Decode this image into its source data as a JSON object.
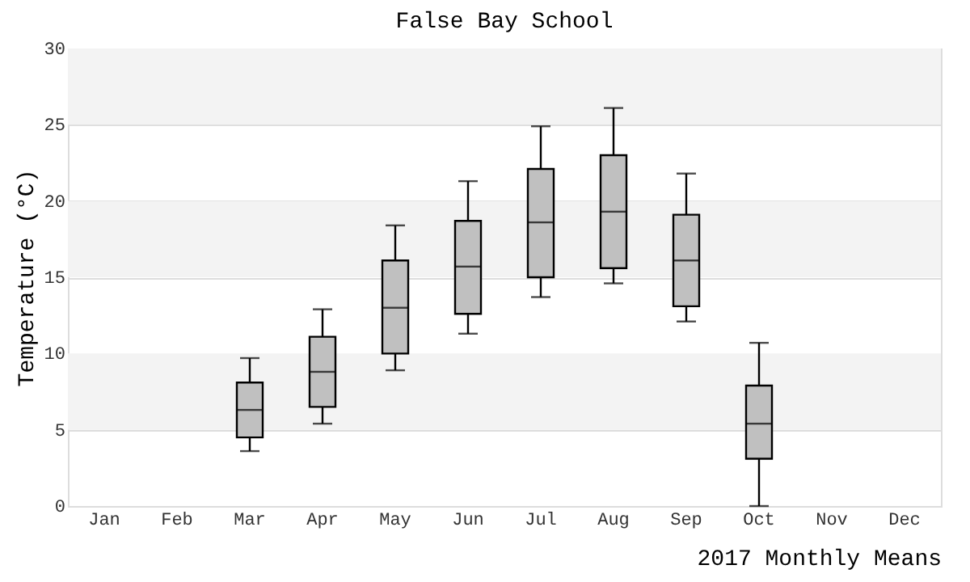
{
  "chart_data": {
    "type": "box",
    "title": "False Bay School",
    "xlabel": "2017 Monthly Means",
    "ylabel": "Temperature (°C)",
    "categories": [
      "Jan",
      "Feb",
      "Mar",
      "Apr",
      "May",
      "Jun",
      "Jul",
      "Aug",
      "Sep",
      "Oct",
      "Nov",
      "Dec"
    ],
    "series": [
      {
        "color": "#c0c0c0",
        "boxes": [
          null,
          null,
          {
            "low": 3.6,
            "q1": 4.5,
            "median": 6.3,
            "q3": 8.1,
            "high": 9.7
          },
          {
            "low": 5.4,
            "q1": 6.5,
            "median": 8.8,
            "q3": 11.1,
            "high": 12.9
          },
          {
            "low": 8.9,
            "q1": 10.0,
            "median": 13.0,
            "q3": 16.1,
            "high": 18.4
          },
          {
            "low": 11.3,
            "q1": 12.6,
            "median": 15.7,
            "q3": 18.7,
            "high": 21.3
          },
          {
            "low": 13.7,
            "q1": 15.0,
            "median": 18.6,
            "q3": 22.1,
            "high": 24.9
          },
          {
            "low": 14.6,
            "q1": 15.6,
            "median": 19.3,
            "q3": 23.0,
            "high": 26.1
          },
          {
            "low": 12.1,
            "q1": 13.1,
            "median": 16.1,
            "q3": 19.1,
            "high": 21.8
          },
          {
            "low": 0,
            "q1": 3.1,
            "median": 5.4,
            "q3": 7.9,
            "high": 10.7
          },
          null,
          null
        ]
      }
    ],
    "ylim": [
      0,
      30
    ],
    "yticks": [
      0,
      5,
      10,
      15,
      20,
      25,
      30
    ],
    "grid": "y",
    "bands": [
      {
        "axis": "y",
        "from": 5,
        "to": 10,
        "color": "#f3f3f3"
      },
      {
        "axis": "y",
        "from": 15,
        "to": 20,
        "color": "#f3f3f3"
      },
      {
        "axis": "y",
        "from": 25,
        "to": 30,
        "color": "#f3f3f3"
      }
    ]
  }
}
